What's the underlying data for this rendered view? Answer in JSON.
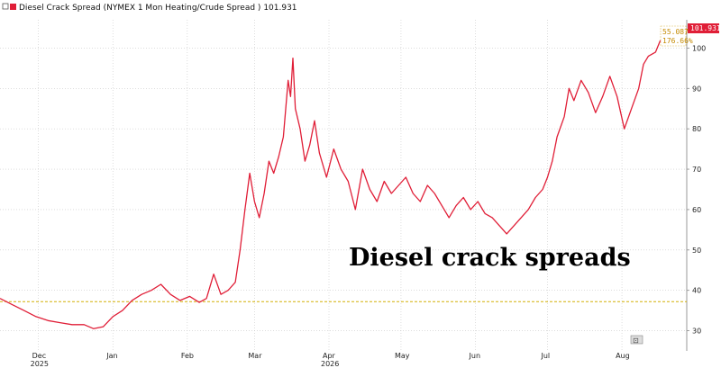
{
  "legend": {
    "label": "Diesel Crack Spread (NYMEX 1 Mon Heating/Crude Spread )",
    "last_value": "101.931"
  },
  "annotation": {
    "text": "Diesel crack spreads"
  },
  "end_tags": {
    "last_price": "101.931",
    "upper": "55.087",
    "lower": "176.66%"
  },
  "toolbar": {
    "zoom_icon_label": "⊡"
  },
  "colors": {
    "series": "#e01e37",
    "reference_line": "#d4b106",
    "grid": "#c8c8c8",
    "tag_text": "#c58a00"
  },
  "chart_data": {
    "type": "line",
    "title": "",
    "xlabel": "",
    "ylabel": "",
    "ylim": [
      25,
      107
    ],
    "y_ticks": [
      30,
      40,
      50,
      60,
      70,
      80,
      90,
      100
    ],
    "reference_line_value": 37.2,
    "x_ticks": [
      {
        "label": "Dec",
        "year": "2025",
        "date": "2025-12-01"
      },
      {
        "label": "Jan",
        "year": "",
        "date": "2026-01-01"
      },
      {
        "label": "Feb",
        "year": "",
        "date": "2026-02-01"
      },
      {
        "label": "Mar",
        "year": "",
        "date": "2026-03-01"
      },
      {
        "label": "Apr",
        "year": "2026",
        "date": "2026-04-01"
      },
      {
        "label": "May",
        "year": "",
        "date": "2026-05-01"
      },
      {
        "label": "Jun",
        "year": "",
        "date": "2026-06-01"
      },
      {
        "label": "Jul",
        "year": "",
        "date": "2026-07-01"
      },
      {
        "label": "Aug",
        "year": "",
        "date": "2026-08-01"
      }
    ],
    "series": [
      {
        "name": "Diesel Crack Spread (NYMEX 1 Mon Heating/Crude Spread )",
        "points": [
          [
            "2025-11-15",
            38.0
          ],
          [
            "2025-11-20",
            36.5
          ],
          [
            "2025-11-25",
            35.0
          ],
          [
            "2025-11-30",
            33.5
          ],
          [
            "2025-12-05",
            32.5
          ],
          [
            "2025-12-10",
            32.0
          ],
          [
            "2025-12-15",
            31.5
          ],
          [
            "2025-12-20",
            31.5
          ],
          [
            "2025-12-24",
            30.5
          ],
          [
            "2025-12-28",
            31.0
          ],
          [
            "2026-01-01",
            33.5
          ],
          [
            "2026-01-05",
            35.0
          ],
          [
            "2026-01-09",
            37.5
          ],
          [
            "2026-01-13",
            39.0
          ],
          [
            "2026-01-17",
            40.0
          ],
          [
            "2026-01-21",
            41.5
          ],
          [
            "2026-01-25",
            39.0
          ],
          [
            "2026-01-29",
            37.5
          ],
          [
            "2026-02-02",
            38.5
          ],
          [
            "2026-02-06",
            37.0
          ],
          [
            "2026-02-09",
            38.0
          ],
          [
            "2026-02-12",
            44.0
          ],
          [
            "2026-02-15",
            39.0
          ],
          [
            "2026-02-18",
            40.0
          ],
          [
            "2026-02-21",
            42.0
          ],
          [
            "2026-02-23",
            50.0
          ],
          [
            "2026-02-25",
            60.0
          ],
          [
            "2026-02-27",
            69.0
          ],
          [
            "2026-03-01",
            62.0
          ],
          [
            "2026-03-03",
            58.0
          ],
          [
            "2026-03-05",
            64.0
          ],
          [
            "2026-03-07",
            72.0
          ],
          [
            "2026-03-09",
            69.0
          ],
          [
            "2026-03-11",
            73.0
          ],
          [
            "2026-03-13",
            78.0
          ],
          [
            "2026-03-15",
            92.0
          ],
          [
            "2026-03-16",
            88.0
          ],
          [
            "2026-03-17",
            97.5
          ],
          [
            "2026-03-18",
            85.0
          ],
          [
            "2026-03-20",
            80.0
          ],
          [
            "2026-03-22",
            72.0
          ],
          [
            "2026-03-24",
            76.0
          ],
          [
            "2026-03-26",
            82.0
          ],
          [
            "2026-03-28",
            74.0
          ],
          [
            "2026-03-31",
            68.0
          ],
          [
            "2026-04-03",
            75.0
          ],
          [
            "2026-04-06",
            70.0
          ],
          [
            "2026-04-09",
            67.0
          ],
          [
            "2026-04-12",
            60.0
          ],
          [
            "2026-04-15",
            70.0
          ],
          [
            "2026-04-18",
            65.0
          ],
          [
            "2026-04-21",
            62.0
          ],
          [
            "2026-04-24",
            67.0
          ],
          [
            "2026-04-27",
            64.0
          ],
          [
            "2026-04-30",
            66.0
          ],
          [
            "2026-05-03",
            68.0
          ],
          [
            "2026-05-06",
            64.0
          ],
          [
            "2026-05-09",
            62.0
          ],
          [
            "2026-05-12",
            66.0
          ],
          [
            "2026-05-15",
            64.0
          ],
          [
            "2026-05-18",
            61.0
          ],
          [
            "2026-05-21",
            58.0
          ],
          [
            "2026-05-24",
            61.0
          ],
          [
            "2026-05-27",
            63.0
          ],
          [
            "2026-05-30",
            60.0
          ],
          [
            "2026-06-02",
            62.0
          ],
          [
            "2026-06-05",
            59.0
          ],
          [
            "2026-06-08",
            58.0
          ],
          [
            "2026-06-11",
            56.0
          ],
          [
            "2026-06-14",
            54.0
          ],
          [
            "2026-06-17",
            56.0
          ],
          [
            "2026-06-20",
            58.0
          ],
          [
            "2026-06-23",
            60.0
          ],
          [
            "2026-06-26",
            63.0
          ],
          [
            "2026-06-29",
            65.0
          ],
          [
            "2026-07-01",
            68.0
          ],
          [
            "2026-07-03",
            72.0
          ],
          [
            "2026-07-05",
            78.0
          ],
          [
            "2026-07-08",
            83.0
          ],
          [
            "2026-07-10",
            90.0
          ],
          [
            "2026-07-12",
            87.0
          ],
          [
            "2026-07-15",
            92.0
          ],
          [
            "2026-07-18",
            89.0
          ],
          [
            "2026-07-21",
            84.0
          ],
          [
            "2026-07-24",
            88.0
          ],
          [
            "2026-07-27",
            93.0
          ],
          [
            "2026-07-30",
            88.0
          ],
          [
            "2026-08-02",
            80.0
          ],
          [
            "2026-08-05",
            85.0
          ],
          [
            "2026-08-08",
            90.0
          ],
          [
            "2026-08-10",
            96.0
          ],
          [
            "2026-08-12",
            98.0
          ],
          [
            "2026-08-15",
            99.0
          ],
          [
            "2026-08-17",
            101.9
          ]
        ]
      }
    ]
  }
}
